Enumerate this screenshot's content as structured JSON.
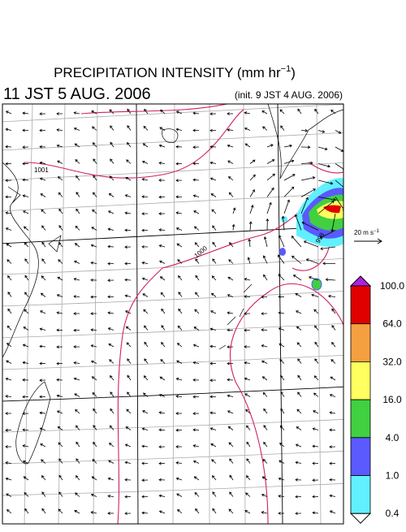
{
  "header": {
    "title": "PRECIPITATION INTENSITY (mm hr",
    "title_exponent": "−1",
    "title_close": ")",
    "time": "11 JST 5 AUG. 2006",
    "init": "(init. 9 JST 4 AUG. 2006)"
  },
  "map": {
    "contour_labels": [
      "1001",
      "1000",
      "998"
    ],
    "reference_vector": {
      "label": "20 m s",
      "exponent": "−1"
    }
  },
  "colorbar": {
    "levels": [
      {
        "label": "100.0",
        "color": "#e00000"
      },
      {
        "label": "64.0",
        "color": "#f5a040"
      },
      {
        "label": "32.0",
        "color": "#ffff60"
      },
      {
        "label": "16.0",
        "color": "#40d040"
      },
      {
        "label": "4.0",
        "color": "#5a5aff"
      },
      {
        "label": "1.0",
        "color": "#60f0ff"
      },
      {
        "label": "0.4",
        "color": "#ffffff"
      }
    ],
    "over_color": "#b020e0"
  }
}
